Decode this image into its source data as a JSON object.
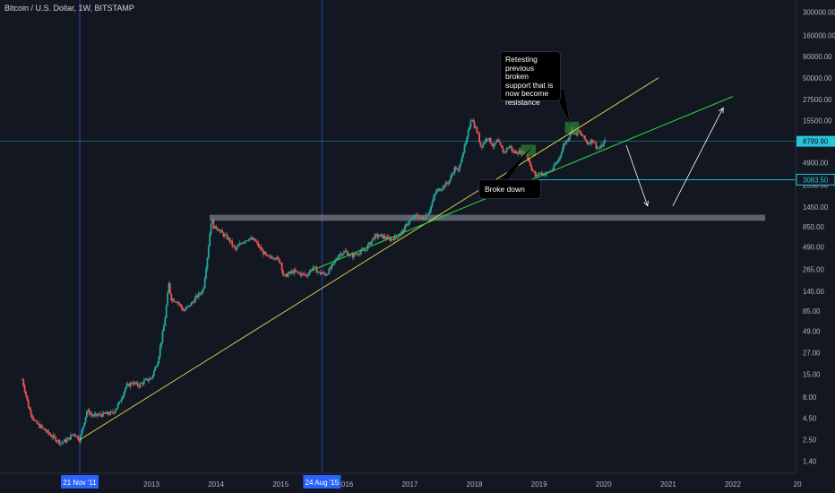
{
  "header": {
    "title": "Bitcoin / U.S. Dollar, 1W, BITSTAMP"
  },
  "annotations": {
    "retest": "Retesting previous broken support that is now become resistance",
    "broke_down": "Broke down"
  },
  "colors": {
    "background": "#131722",
    "up_candle": "#26a69a",
    "down_candle": "#ef5350",
    "yellow_trendline": "#e8e34c",
    "green_trendline": "#2ecc40",
    "marker_line": "#2962ff",
    "price_line": "#26c6da",
    "axis_text": "#b2b5be"
  },
  "chart_data": {
    "type": "candlestick",
    "title": "Bitcoin / U.S. Dollar, 1W, BITSTAMP",
    "y_scale": "log",
    "ylim": [
      1.0,
      420000
    ],
    "xlim": [
      2010.85,
      2023.1
    ],
    "y_ticks": [
      "300000.00",
      "160000.00",
      "90000.00",
      "50000.00",
      "27500.00",
      "15500.00",
      "8799.90",
      "4900.00",
      "3083.50",
      "2650.00",
      "1450.00",
      "850.00",
      "490.00",
      "265.00",
      "145.00",
      "85.00",
      "49.00",
      "27.00",
      "15.00",
      "8.00",
      "4.50",
      "2.50",
      "1.40"
    ],
    "y_tick_values": [
      300000,
      160000,
      90000,
      50000,
      27500,
      15500,
      8799.9,
      4900,
      3083.5,
      2650,
      1450,
      850,
      490,
      265,
      145,
      85,
      49,
      27,
      15,
      8,
      4.5,
      2.5,
      1.4
    ],
    "x_ticks": [
      "2013",
      "2014",
      "2015",
      "2016",
      "2017",
      "2018",
      "2019",
      "2020",
      "2021",
      "2022",
      "20"
    ],
    "x_tick_values": [
      2013,
      2014,
      2015,
      2016,
      2017,
      2018,
      2019,
      2020,
      2021,
      2022,
      2023
    ],
    "current_price": {
      "label": "8799.90",
      "value": 8799.9
    },
    "level_price": {
      "label": "3083.50",
      "value": 3083.5
    },
    "vertical_markers": [
      {
        "label": "21 Nov '11",
        "x": 2011.89
      },
      {
        "label": "24 Aug '15",
        "x": 2015.64
      }
    ],
    "price_path": [
      [
        2011.0,
        13
      ],
      [
        2011.05,
        9
      ],
      [
        2011.1,
        6
      ],
      [
        2011.2,
        4
      ],
      [
        2011.3,
        3.5
      ],
      [
        2011.4,
        3.0
      ],
      [
        2011.5,
        2.6
      ],
      [
        2011.6,
        2.3
      ],
      [
        2011.7,
        2.5
      ],
      [
        2011.8,
        3.0
      ],
      [
        2011.89,
        2.5
      ],
      [
        2012.0,
        5.5
      ],
      [
        2012.1,
        4.8
      ],
      [
        2012.25,
        5.0
      ],
      [
        2012.4,
        5.2
      ],
      [
        2012.5,
        6.8
      ],
      [
        2012.6,
        10.5
      ],
      [
        2012.7,
        12.0
      ],
      [
        2012.8,
        11.0
      ],
      [
        2012.9,
        12.5
      ],
      [
        2013.0,
        13.5
      ],
      [
        2013.1,
        22
      ],
      [
        2013.2,
        60
      ],
      [
        2013.27,
        180
      ],
      [
        2013.3,
        120
      ],
      [
        2013.4,
        110
      ],
      [
        2013.5,
        85
      ],
      [
        2013.6,
        100
      ],
      [
        2013.7,
        125
      ],
      [
        2013.8,
        150
      ],
      [
        2013.87,
        400
      ],
      [
        2013.93,
        1100
      ],
      [
        2013.97,
        800
      ],
      [
        2014.0,
        850
      ],
      [
        2014.1,
        700
      ],
      [
        2014.2,
        600
      ],
      [
        2014.3,
        450
      ],
      [
        2014.4,
        560
      ],
      [
        2014.5,
        620
      ],
      [
        2014.6,
        580
      ],
      [
        2014.7,
        450
      ],
      [
        2014.8,
        360
      ],
      [
        2014.9,
        380
      ],
      [
        2015.0,
        320
      ],
      [
        2015.05,
        210
      ],
      [
        2015.1,
        230
      ],
      [
        2015.2,
        250
      ],
      [
        2015.3,
        235
      ],
      [
        2015.4,
        225
      ],
      [
        2015.5,
        280
      ],
      [
        2015.6,
        240
      ],
      [
        2015.7,
        230
      ],
      [
        2015.8,
        290
      ],
      [
        2015.9,
        400
      ],
      [
        2016.0,
        430
      ],
      [
        2016.1,
        380
      ],
      [
        2016.2,
        420
      ],
      [
        2016.3,
        440
      ],
      [
        2016.45,
        650
      ],
      [
        2016.55,
        660
      ],
      [
        2016.7,
        600
      ],
      [
        2016.8,
        650
      ],
      [
        2016.9,
        760
      ],
      [
        2016.97,
        960
      ],
      [
        2017.0,
        1000
      ],
      [
        2017.1,
        1150
      ],
      [
        2017.2,
        1050
      ],
      [
        2017.3,
        1300
      ],
      [
        2017.4,
        2200
      ],
      [
        2017.5,
        2500
      ],
      [
        2017.6,
        2900
      ],
      [
        2017.7,
        4300
      ],
      [
        2017.75,
        3800
      ],
      [
        2017.8,
        5800
      ],
      [
        2017.88,
        9000
      ],
      [
        2017.95,
        17500
      ],
      [
        2017.99,
        14000
      ],
      [
        2018.05,
        11000
      ],
      [
        2018.1,
        7500
      ],
      [
        2018.2,
        10000
      ],
      [
        2018.3,
        7500
      ],
      [
        2018.35,
        9000
      ],
      [
        2018.45,
        6500
      ],
      [
        2018.55,
        7800
      ],
      [
        2018.6,
        6500
      ],
      [
        2018.7,
        6600
      ],
      [
        2018.8,
        6400
      ],
      [
        2018.88,
        4300
      ],
      [
        2018.95,
        3300
      ],
      [
        2019.0,
        3700
      ],
      [
        2019.1,
        3600
      ],
      [
        2019.2,
        4000
      ],
      [
        2019.3,
        5300
      ],
      [
        2019.38,
        8000
      ],
      [
        2019.45,
        9500
      ],
      [
        2019.5,
        12500
      ],
      [
        2019.55,
        10500
      ],
      [
        2019.6,
        11500
      ],
      [
        2019.68,
        10000
      ],
      [
        2019.75,
        8300
      ],
      [
        2019.83,
        9200
      ],
      [
        2019.9,
        7300
      ],
      [
        2019.95,
        7300
      ],
      [
        2020.02,
        8800
      ]
    ],
    "shapes": {
      "horizontal_zone": {
        "x0": 2013.9,
        "x1": 2022.5,
        "y_low": 1000,
        "y_high": 1180
      },
      "green_boxes": [
        {
          "x0": 2018.72,
          "x1": 2018.95,
          "y_low": 5900,
          "y_high": 8000
        },
        {
          "x0": 2019.4,
          "x1": 2019.62,
          "y_low": 11000,
          "y_high": 15000
        }
      ],
      "yellow_trendline": {
        "x0": 2011.89,
        "y0": 2.5,
        "x1": 2020.85,
        "y1": 50000
      },
      "green_trendline": {
        "x0": 2015.5,
        "y0": 260,
        "x1": 2022.0,
        "y1": 30000
      },
      "level_line": {
        "x0": 2018.95,
        "x1": 2022.7,
        "y": 3083.5
      },
      "projection_arrows": [
        {
          "x0": 2020.35,
          "y0": 7900,
          "x1": 2020.68,
          "y1": 1500
        },
        {
          "x0": 2021.07,
          "y0": 1500,
          "x1": 2021.85,
          "y1": 22000
        }
      ],
      "callout_pointers": [
        {
          "from_x": 2018.89,
          "from_y": 7600,
          "to_x": 2018.3,
          "to_y": 2200
        },
        {
          "from_x": 2019.48,
          "from_y": 14000,
          "to_x": 2019.3,
          "to_y": 37000
        }
      ]
    }
  }
}
